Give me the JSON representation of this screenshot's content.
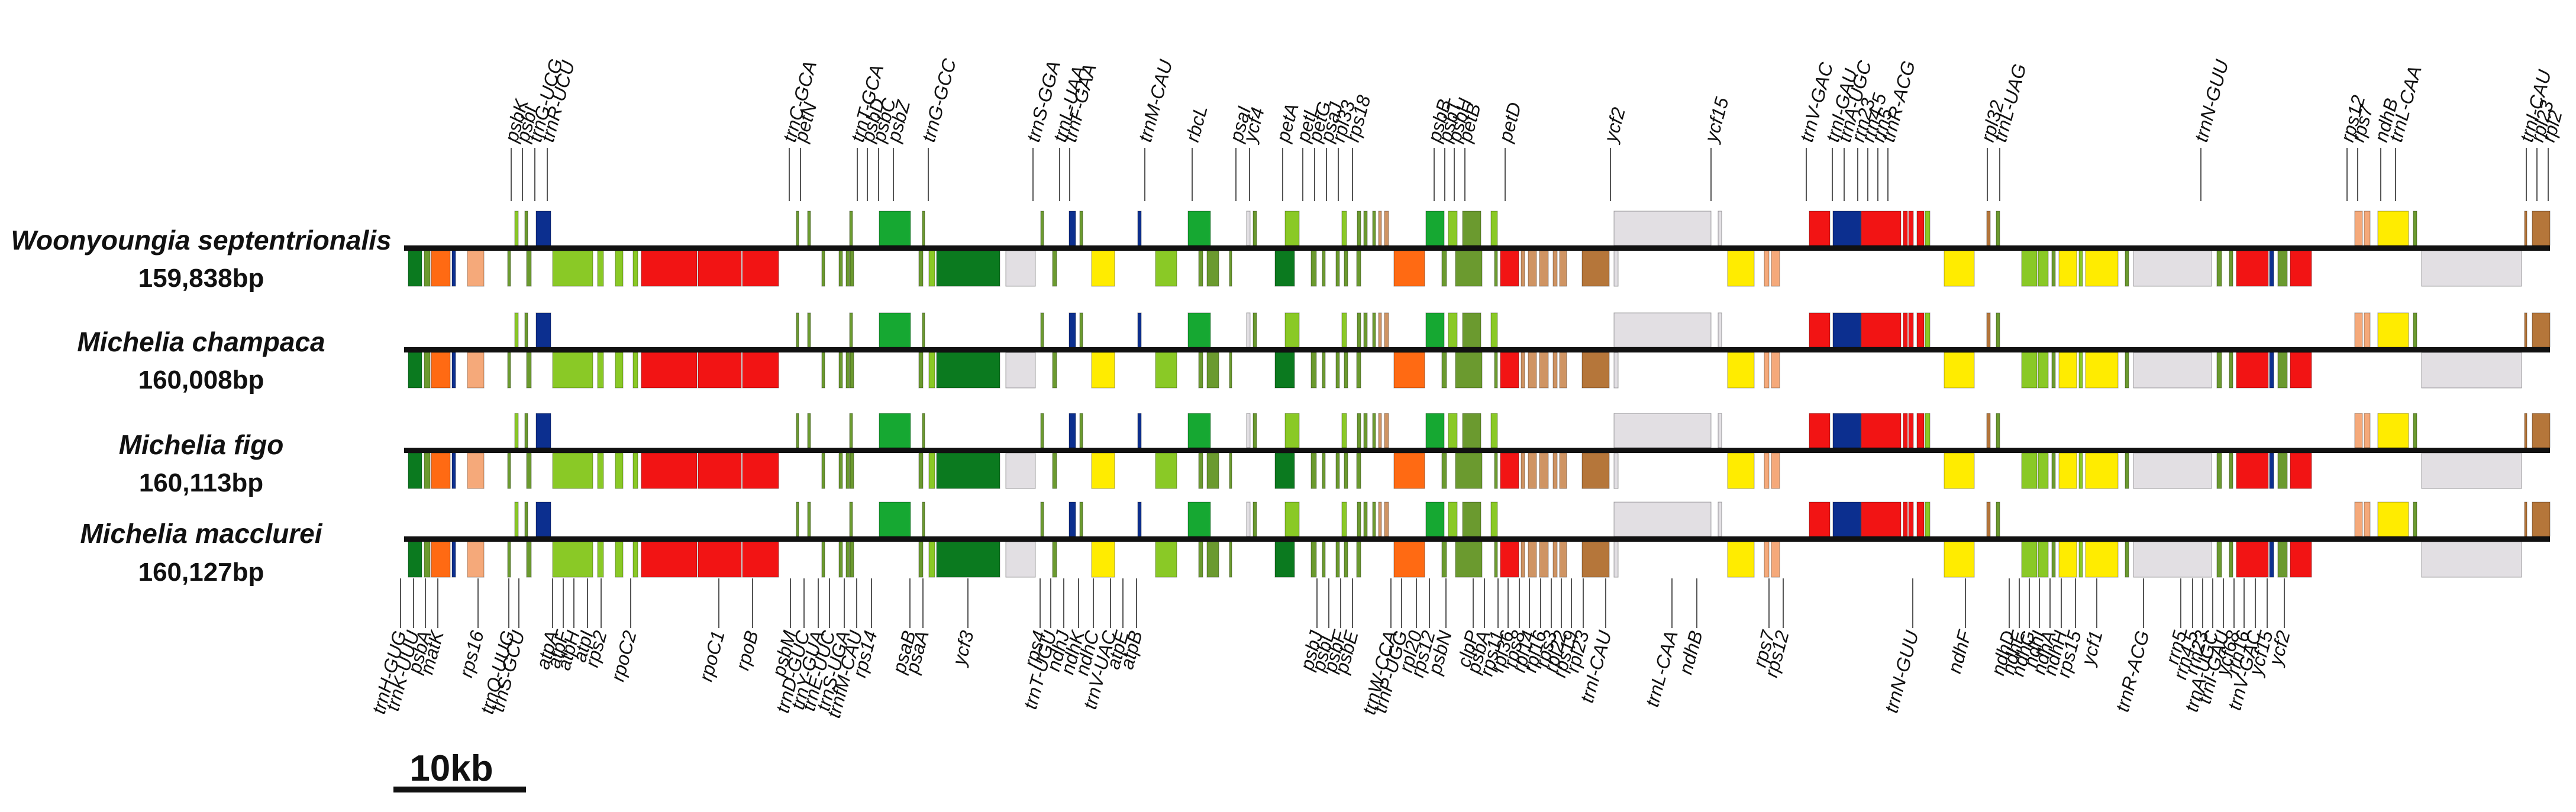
{
  "colors": {
    "red": "#f21414",
    "orange": "#ff6a13",
    "salmon": "#f5a97a",
    "yellow": "#ffec00",
    "lime": "#8ac926",
    "olive": "#6b9a2f",
    "darkgreen": "#0b7a1f",
    "green": "#16a832",
    "navy": "#0c2f8f",
    "brown": "#b5763a",
    "tan": "#cf9463",
    "lightgray": "#e2dfe3"
  },
  "species": [
    {
      "name": "Woonyoungia septentrionalis",
      "size": "159,838bp"
    },
    {
      "name": "Michelia champaca",
      "size": "160,008bp"
    },
    {
      "name": "Michelia figo",
      "size": "160,113bp"
    },
    {
      "name": "Michelia macclurei",
      "size": "160,127bp"
    }
  ],
  "scale_bar": {
    "label": "10kb"
  },
  "top_genes": [
    "psbK",
    "psbI",
    "trnG-UCG",
    "trnR-UCU",
    "trnC-GCA",
    "petN",
    "trnT-GCA",
    "psbD",
    "psbC",
    "psbZ",
    "trnG-GCC",
    "trnS-GGA",
    "trnL-UAA",
    "trnF-GAA",
    "trnM-CAU",
    "rbcL",
    "psaI",
    "ycf4",
    "petA",
    "petL",
    "petG",
    "psaJ",
    "rpl33",
    "rps18",
    "psbB",
    "psbT",
    "psbH",
    "petB",
    "petD",
    "ycf2",
    "ycf15",
    "trnV-GAC",
    "trnI-GAU",
    "trnA-UGC",
    "rrn23",
    "rrn4.5",
    "rrn5",
    "trnR-ACG",
    "rpl32",
    "trnL-UAG",
    "trnN-GUU",
    "rps12",
    "rps7",
    "ndhB",
    "trnL-CAA",
    "trnI-CAU",
    "rpl23",
    "rpl2"
  ],
  "bottom_genes": [
    "trnH-GUG",
    "trnK-UUU",
    "psbA",
    "matK",
    "rps16",
    "trnQ-UUG",
    "trnS-GCU",
    "atpA",
    "atpF",
    "atpH",
    "atpI",
    "rps2",
    "rpoC2",
    "rpoC1",
    "rpoB",
    "psbM",
    "trnD-GUC",
    "trnY-GUA",
    "trnE-UUC",
    "trnS-UGA",
    "trnfM-CAU",
    "rps14",
    "psaB",
    "psaA",
    "ycf3",
    "rps4",
    "trnT-UGU",
    "ndhJ",
    "ndhK",
    "ndhC",
    "trnV-UAC",
    "atpE",
    "atpB",
    "psbJ",
    "psbL",
    "psbF",
    "psbE",
    "trnW-CCA",
    "trnP-UGG",
    "rpl20",
    "rps12",
    "psbN",
    "clpP",
    "psbA",
    "rps11",
    "rpl36",
    "rps8",
    "rpl14",
    "rpl16",
    "rps3",
    "rpl22",
    "rps19",
    "rpl23",
    "trnI-CAU",
    "trnL-CAA",
    "ndhB",
    "rps7",
    "rps12",
    "trnN-GUU",
    "ndhF",
    "ndhD",
    "ndhE",
    "ndhG",
    "ndhI",
    "ndhA",
    "ndhH",
    "rps15",
    "ycf1",
    "trnR-ACG",
    "rrn5",
    "rrn4.5",
    "rrn23",
    "trnA-UGC",
    "trnI-GAU",
    "ycf68",
    "rrn16",
    "trnV-GAC",
    "ycf15",
    "ycf2"
  ]
}
